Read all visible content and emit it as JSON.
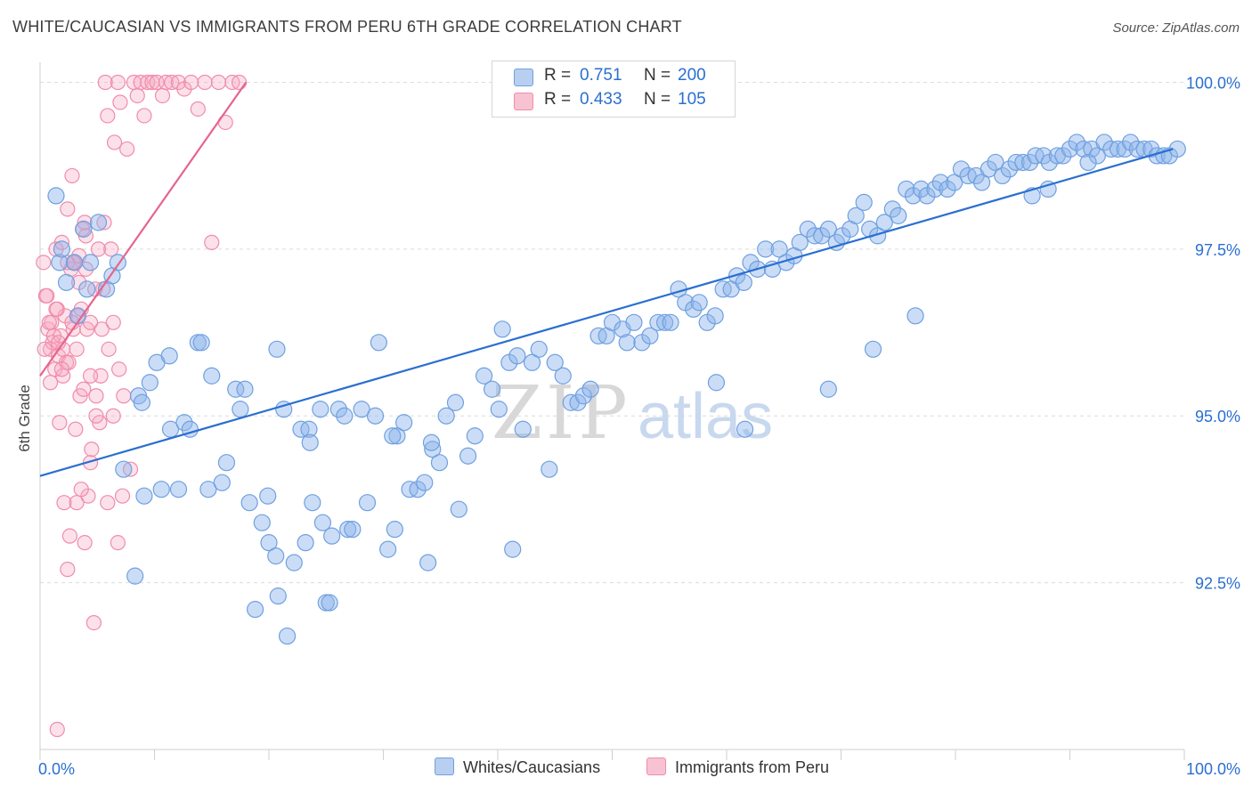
{
  "title": "WHITE/CAUCASIAN VS IMMIGRANTS FROM PERU 6TH GRADE CORRELATION CHART",
  "source": "Source: ZipAtlas.com",
  "watermark": {
    "zip": "ZIP",
    "atlas": "atlas"
  },
  "legend": {
    "rows": [
      {
        "r_label": "R =",
        "r_value": "0.751",
        "n_label": "N =",
        "n_value": "200"
      },
      {
        "r_label": "R =",
        "r_value": "0.433",
        "n_label": "N =",
        "n_value": "105"
      }
    ]
  },
  "bottom_legend": [
    "Whites/Caucasians",
    "Immigrants from Peru"
  ],
  "chart_data": {
    "type": "scatter",
    "title": "WHITE/CAUCASIAN VS IMMIGRANTS FROM PERU 6TH GRADE CORRELATION CHART",
    "xlabel": "",
    "ylabel": "6th Grade",
    "xlim": [
      0,
      100
    ],
    "ylim": [
      90.0,
      100.3
    ],
    "x_tick_labels": [
      "0.0%",
      "100.0%"
    ],
    "y_ticks": [
      92.5,
      95.0,
      97.5,
      100.0
    ],
    "y_tick_labels": [
      "92.5%",
      "95.0%",
      "97.5%",
      "100.0%"
    ],
    "grid": true,
    "colors": {
      "blue": "#6fa0e0",
      "blue_line": "#2a6fd1",
      "pink": "#f08cab",
      "pink_line": "#e6648e",
      "tick_text": "#2a6fd1"
    },
    "series": [
      {
        "name": "Whites/Caucasians",
        "R": 0.751,
        "N": 200,
        "trend": {
          "x": [
            0,
            99
          ],
          "y": [
            94.1,
            99.0
          ]
        },
        "x": [
          1.4,
          1.7,
          1.9,
          2.3,
          3.0,
          3.3,
          3.8,
          4.1,
          4.4,
          5.1,
          5.8,
          6.3,
          6.8,
          7.3,
          8.3,
          8.6,
          9.1,
          9.6,
          10.2,
          10.6,
          11.4,
          12.1,
          12.6,
          13.1,
          13.8,
          14.1,
          14.7,
          15.0,
          15.9,
          16.3,
          17.1,
          17.5,
          18.3,
          18.8,
          19.4,
          20.0,
          20.6,
          21.3,
          21.6,
          22.2,
          22.8,
          23.5,
          23.8,
          24.5,
          25.0,
          25.3,
          26.1,
          26.9,
          27.3,
          28.1,
          28.6,
          29.3,
          29.6,
          30.4,
          31.2,
          31.8,
          32.3,
          33.0,
          33.6,
          34.3,
          34.9,
          35.5,
          36.3,
          36.6,
          37.4,
          38.0,
          38.8,
          39.5,
          40.1,
          40.4,
          41.0,
          41.7,
          42.2,
          43.0,
          43.6,
          44.5,
          45.0,
          45.7,
          46.4,
          47.0,
          47.5,
          48.1,
          48.8,
          49.5,
          50.0,
          50.9,
          51.3,
          51.9,
          52.6,
          53.3,
          54.0,
          54.6,
          55.1,
          55.8,
          56.4,
          57.1,
          57.6,
          58.3,
          59.0,
          59.7,
          60.4,
          60.9,
          61.5,
          62.1,
          62.7,
          63.4,
          64.0,
          64.6,
          65.2,
          65.9,
          66.4,
          67.1,
          67.7,
          68.3,
          68.9,
          69.6,
          70.1,
          70.8,
          71.3,
          72.0,
          72.5,
          73.2,
          73.8,
          74.5,
          75.0,
          75.7,
          76.3,
          77.0,
          77.5,
          78.2,
          78.7,
          79.3,
          79.9,
          80.5,
          81.1,
          81.8,
          82.3,
          82.9,
          83.5,
          84.1,
          84.7,
          85.3,
          85.9,
          86.5,
          87.0,
          87.7,
          88.2,
          88.9,
          89.4,
          90.0,
          90.6,
          91.2,
          91.9,
          92.4,
          93.0,
          93.6,
          94.2,
          94.8,
          95.3,
          95.9,
          96.5,
          97.1,
          97.6,
          98.2,
          98.7,
          99.4,
          20.7,
          8.9,
          23.6,
          17.9,
          26.6,
          24.7,
          30.8,
          23.2,
          31.0,
          41.3,
          59.1,
          68.9,
          72.8,
          25.5,
          61.6,
          76.5,
          19.9,
          20.8,
          33.9,
          34.2,
          11.3,
          88.1,
          86.7,
          91.6
        ],
        "y": [
          98.3,
          97.3,
          97.5,
          97.0,
          97.3,
          96.5,
          97.8,
          96.9,
          97.3,
          97.9,
          96.9,
          97.1,
          97.3,
          94.2,
          92.6,
          95.3,
          93.8,
          95.5,
          95.8,
          93.9,
          94.8,
          93.9,
          94.9,
          94.8,
          96.1,
          96.1,
          93.9,
          95.6,
          94.0,
          94.3,
          95.4,
          95.1,
          93.7,
          92.1,
          93.4,
          93.1,
          92.9,
          95.1,
          91.7,
          92.8,
          94.8,
          94.8,
          93.7,
          95.1,
          92.2,
          92.2,
          95.1,
          93.3,
          93.3,
          95.1,
          93.7,
          95.0,
          96.1,
          93.0,
          94.7,
          94.9,
          93.9,
          93.9,
          94.0,
          94.5,
          94.3,
          95.0,
          95.2,
          93.6,
          94.4,
          94.7,
          95.6,
          95.4,
          95.1,
          96.3,
          95.8,
          95.9,
          94.8,
          95.8,
          96.0,
          94.2,
          95.8,
          95.6,
          95.2,
          95.2,
          95.3,
          95.4,
          96.2,
          96.2,
          96.4,
          96.3,
          96.1,
          96.4,
          96.1,
          96.2,
          96.4,
          96.4,
          96.4,
          96.9,
          96.7,
          96.6,
          96.7,
          96.4,
          96.5,
          96.9,
          96.9,
          97.1,
          97.0,
          97.3,
          97.2,
          97.5,
          97.2,
          97.5,
          97.3,
          97.4,
          97.6,
          97.8,
          97.7,
          97.7,
          97.8,
          97.6,
          97.7,
          97.8,
          98.0,
          98.2,
          97.8,
          97.7,
          97.9,
          98.1,
          98.0,
          98.4,
          98.3,
          98.4,
          98.3,
          98.4,
          98.5,
          98.4,
          98.5,
          98.7,
          98.6,
          98.6,
          98.5,
          98.7,
          98.8,
          98.6,
          98.7,
          98.8,
          98.8,
          98.8,
          98.9,
          98.9,
          98.8,
          98.9,
          98.9,
          99.0,
          99.1,
          99.0,
          99.0,
          98.9,
          99.1,
          99.0,
          99.0,
          99.0,
          99.1,
          99.0,
          99.0,
          99.0,
          98.9,
          98.9,
          98.9,
          99.0,
          96.0,
          95.2,
          94.6,
          95.4,
          95.0,
          93.4,
          94.7,
          93.1,
          93.3,
          93.0,
          95.5,
          95.4,
          96.0,
          93.2,
          94.8,
          96.5,
          93.8,
          92.3,
          92.8,
          94.6,
          95.9,
          98.4,
          98.3,
          98.8
        ]
      },
      {
        "name": "Immigrants from Peru",
        "R": 0.433,
        "N": 105,
        "trend": {
          "x": [
            0,
            18
          ],
          "y": [
            95.6,
            100.0
          ]
        },
        "x": [
          0.3,
          0.5,
          0.7,
          0.9,
          1.0,
          1.1,
          1.3,
          1.4,
          1.5,
          1.6,
          1.7,
          1.8,
          1.9,
          2.0,
          2.1,
          2.2,
          2.3,
          2.4,
          2.5,
          2.6,
          2.7,
          2.8,
          2.9,
          3.0,
          3.1,
          3.2,
          3.3,
          3.4,
          3.5,
          3.6,
          3.7,
          3.8,
          3.9,
          4.0,
          4.1,
          4.2,
          4.4,
          4.5,
          4.7,
          4.9,
          5.1,
          5.3,
          5.5,
          5.7,
          5.9,
          6.2,
          6.5,
          6.8,
          7.0,
          7.3,
          7.6,
          7.9,
          8.2,
          8.5,
          8.8,
          9.1,
          9.4,
          9.8,
          10.2,
          10.7,
          11.0,
          11.5,
          12.1,
          12.6,
          13.2,
          13.8,
          14.4,
          15.0,
          15.6,
          16.2,
          16.8,
          17.4,
          0.6,
          0.8,
          1.2,
          1.6,
          2.0,
          2.4,
          2.8,
          3.2,
          3.6,
          4.0,
          4.4,
          4.8,
          5.2,
          5.6,
          6.0,
          6.4,
          6.8,
          7.2,
          0.4,
          0.9,
          1.4,
          1.9,
          2.4,
          2.9,
          3.4,
          3.9,
          4.4,
          4.9,
          5.4,
          5.9,
          6.4,
          6.9,
          1.5
        ],
        "y": [
          97.3,
          96.8,
          96.3,
          96.0,
          96.4,
          96.1,
          95.7,
          97.5,
          96.6,
          95.9,
          94.9,
          96.2,
          97.6,
          96.0,
          93.7,
          96.5,
          95.8,
          92.7,
          95.8,
          93.2,
          97.2,
          98.6,
          96.3,
          97.3,
          94.8,
          93.7,
          96.5,
          97.0,
          95.3,
          96.6,
          97.8,
          95.4,
          93.1,
          97.7,
          96.3,
          93.8,
          94.3,
          94.5,
          91.9,
          95.3,
          97.5,
          95.6,
          96.9,
          100.0,
          99.5,
          97.5,
          99.1,
          100.0,
          99.7,
          95.3,
          99.0,
          94.2,
          100.0,
          99.8,
          100.0,
          99.5,
          100.0,
          100.0,
          100.0,
          99.8,
          100.0,
          100.0,
          100.0,
          99.9,
          100.0,
          99.6,
          100.0,
          97.6,
          100.0,
          99.4,
          100.0,
          100.0,
          96.8,
          96.4,
          96.2,
          96.1,
          95.6,
          98.1,
          96.4,
          96.0,
          93.9,
          97.2,
          95.6,
          96.9,
          94.9,
          97.9,
          96.0,
          95.0,
          93.1,
          93.8,
          96.0,
          95.5,
          96.6,
          95.7,
          97.3,
          97.3,
          97.4,
          97.9,
          96.4,
          95.0,
          96.3,
          93.7,
          96.4,
          95.7,
          90.3
        ]
      }
    ]
  }
}
